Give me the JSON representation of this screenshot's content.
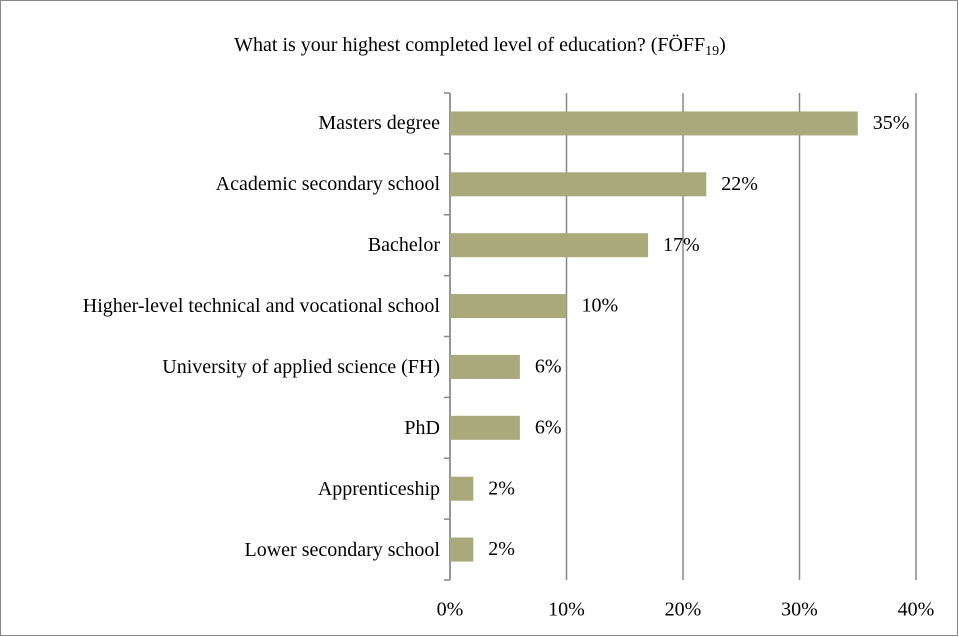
{
  "chart_data": {
    "type": "bar",
    "orientation": "horizontal",
    "title": "What is your highest completed level of education? (FÖFF",
    "title_subscript": "19",
    "title_end": ")",
    "categories": [
      "Masters degree",
      "Academic secondary school",
      "Bachelor",
      "Higher-level technical and vocational school",
      "University of applied science (FH)",
      "PhD",
      "Apprenticeship",
      "Lower secondary school"
    ],
    "values": [
      35,
      22,
      17,
      10,
      6,
      6,
      2,
      2
    ],
    "value_labels": [
      "35%",
      "22%",
      "17%",
      "10%",
      "6%",
      "6%",
      "2%",
      "2%"
    ],
    "color": "#aaa97c",
    "xlim": [
      0,
      40
    ],
    "xticks": [
      {
        "value": 0,
        "label": "0%"
      },
      {
        "value": 10,
        "label": "10%"
      },
      {
        "value": 20,
        "label": "20%"
      },
      {
        "value": 30,
        "label": "30%"
      },
      {
        "value": 40,
        "label": "40%"
      }
    ],
    "grid": true
  }
}
